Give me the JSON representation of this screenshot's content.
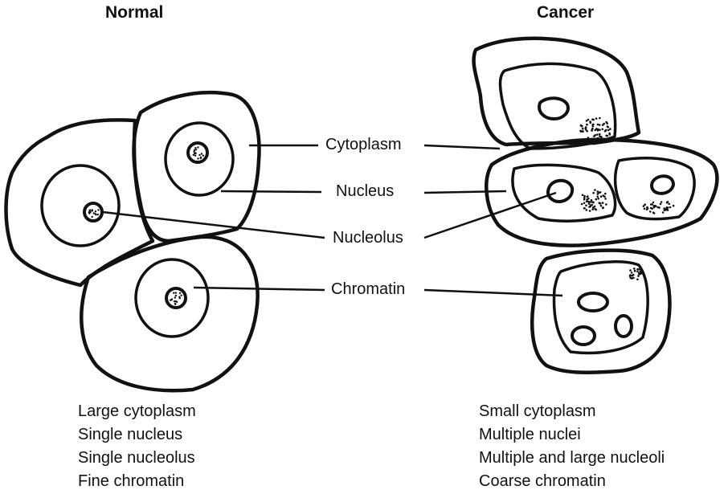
{
  "headings": {
    "normal": "Normal",
    "cancer": "Cancer"
  },
  "labels": {
    "cytoplasm": "Cytoplasm",
    "nucleus": "Nucleus",
    "nucleolus": "Nucleolus",
    "chromatin": "Chromatin"
  },
  "normal_traits": [
    "Large cytoplasm",
    "Single nucleus",
    "Single nucleolus",
    "Fine chromatin"
  ],
  "cancer_traits": [
    "Small cytoplasm",
    "Multiple nuclei",
    "Multiple and large nucleoli",
    "Coarse chromatin"
  ]
}
